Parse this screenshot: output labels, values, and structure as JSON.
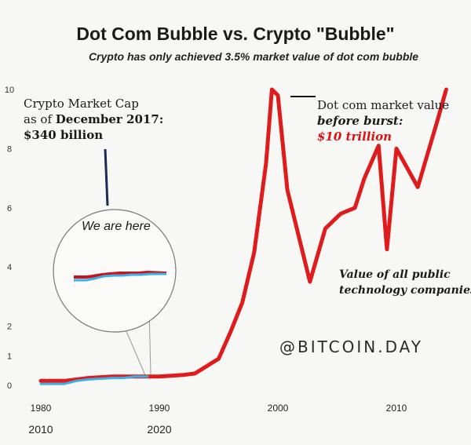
{
  "chart_data": {
    "type": "line",
    "title": "Dot Com Bubble vs. Crypto \"Bubble\"",
    "subtitle": "Crypto has only achieved 3.5% market value of dot com bubble",
    "ylim": [
      0,
      10
    ],
    "yticks": [
      "0",
      "1",
      "2",
      "4",
      "6",
      "8",
      "10"
    ],
    "xticks_top": [
      "1980",
      "1990",
      "2000",
      "2010"
    ],
    "xticks_bottom": [
      "2010",
      "2020"
    ],
    "series": [
      {
        "name": "Value of all public technology companies",
        "color": "#e01b1b",
        "x": [
          1980,
          1982,
          1984,
          1986,
          1988,
          1990,
          1992,
          1993,
          1995,
          1996,
          1997,
          1998,
          1999,
          1999.5,
          2000,
          2000.8,
          2002.7,
          2004,
          2005.3,
          2006.5,
          2007.3,
          2008.5,
          2009.2,
          2010,
          2011.8,
          2013.5,
          2014.2
        ],
        "values": [
          0.15,
          0.15,
          0.25,
          0.3,
          0.3,
          0.3,
          0.35,
          0.4,
          0.9,
          1.8,
          2.8,
          4.5,
          7.5,
          10,
          9.8,
          6.6,
          3.5,
          5.3,
          5.8,
          6.0,
          7.0,
          8.1,
          4.6,
          8.0,
          6.7,
          9.0,
          10
        ]
      },
      {
        "name": "Crypto Market Cap",
        "color": "#3ab0e6",
        "x": [
          1980,
          1982,
          1983,
          1984,
          1986,
          1987,
          1988,
          1989
        ],
        "values": [
          0.05,
          0.05,
          0.15,
          0.2,
          0.25,
          0.25,
          0.3,
          0.3
        ]
      }
    ],
    "annotations": {
      "crypto_cap": {
        "line1": "Crypto Market Cap",
        "line2": "as of",
        "line2_bold": "December 2017:",
        "line3": "$340 billion"
      },
      "we_are_here": "We are here",
      "dotcom": {
        "line1": "Dot com market value",
        "line2": "before burst:",
        "line3": "$10 trillion"
      },
      "public_tech": {
        "line1": "Value of all public",
        "line2": "technology companies"
      }
    },
    "watermark": "@BITCOIN.DAY"
  }
}
